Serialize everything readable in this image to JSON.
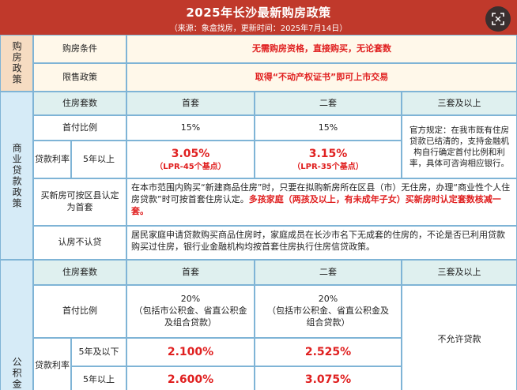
{
  "header": {
    "title": "2025年长沙最新购房政策",
    "subtitle": "（来源：象盒找房，更新时间：2025年7月14日）",
    "scan_icon": "scan-icon"
  },
  "purchase": {
    "section": "购房政策",
    "condition_label": "购房条件",
    "condition_value": "无需购房资格，直接购买，无论套数",
    "resale_label": "限售政策",
    "resale_value": "取得“不动产权证书”即可上市交易"
  },
  "commercial": {
    "section": "商业贷款政策",
    "col_label": "住房套数",
    "col1": "首套",
    "col2": "二套",
    "col3": "三套及以上",
    "down_label": "首付比例",
    "down1": "15%",
    "down2": "15%",
    "third_note": "官方规定：在我市既有住房贷款已结清的，支持金融机构自行确定首付比例和利率，具体可咨询相应银行。",
    "rate_label": "贷款利率",
    "rate_term": "5年以上",
    "rate1": "3.05%",
    "rate1_note": "（LPR-45个基点）",
    "rate2": "3.15%",
    "rate2_note": "（LPR-35个基点）",
    "newhome_label": "买新房可按区县认定为首套",
    "newhome_text": "在本市范围内购买“新建商品住房”时，只要在拟购新房所在区县（市）无住房，办理“商业性个人住房贷款”时可按首套住房认定。",
    "newhome_highlight": "多孩家庭（两孩及以上，有未成年子女）买新房时认定套数核减一套。",
    "noloan_label": "认房不认贷",
    "noloan_text": "居民家庭申请贷款购买商品住房时，家庭成员在长沙市名下无成套的住房的，不论是否已利用贷款购买过住房，银行业金融机构均按首套住房执行住房信贷政策。"
  },
  "fund": {
    "section": "公积金",
    "col_label": "住房套数",
    "col1": "首套",
    "col2": "二套",
    "col3": "三套及以上",
    "down_label": "首付比例",
    "down1": "20%",
    "down1_note": "（包括市公积金、省直公积金及组合贷款）",
    "down2": "20%",
    "down2_note": "（包括市公积金、省直公积金及组合贷款）",
    "third_value": "不允许贷款",
    "rate_label": "贷款利率",
    "term1": "5年及以下",
    "term2": "5年以上",
    "r11": "2.100%",
    "r12": "2.525%",
    "r21": "2.600%",
    "r22": "3.075%"
  }
}
